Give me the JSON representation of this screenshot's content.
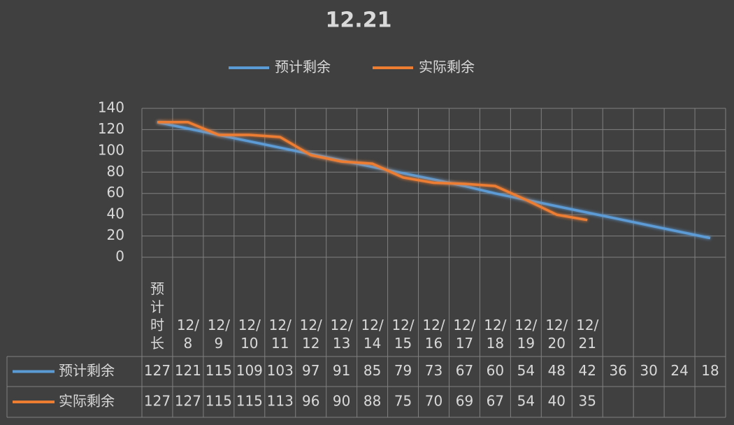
{
  "chart_data": {
    "type": "line",
    "title": "12.21",
    "categories": [
      "预计时长",
      "12/8",
      "12/9",
      "12/10",
      "12/11",
      "12/12",
      "12/13",
      "12/14",
      "12/15",
      "12/16",
      "12/17",
      "12/18",
      "12/19",
      "12/20",
      "12/21",
      null,
      null,
      null,
      null
    ],
    "series": [
      {
        "name": "预计剩余",
        "color": "#5b9bd5",
        "values": [
          127,
          121,
          115,
          109,
          103,
          97,
          91,
          85,
          79,
          73,
          67,
          60,
          54,
          48,
          42,
          36,
          30,
          24,
          18
        ]
      },
      {
        "name": "实际剩余",
        "color": "#ed7d31",
        "values": [
          127,
          127,
          115,
          115,
          113,
          96,
          90,
          88,
          75,
          70,
          69,
          67,
          54,
          40,
          35,
          null,
          null,
          null,
          null
        ]
      }
    ],
    "ylim": [
      0,
      140
    ],
    "yticks": [
      0,
      20,
      40,
      60,
      80,
      100,
      120,
      140
    ],
    "grid": true,
    "legend": "top",
    "data_table": true
  }
}
